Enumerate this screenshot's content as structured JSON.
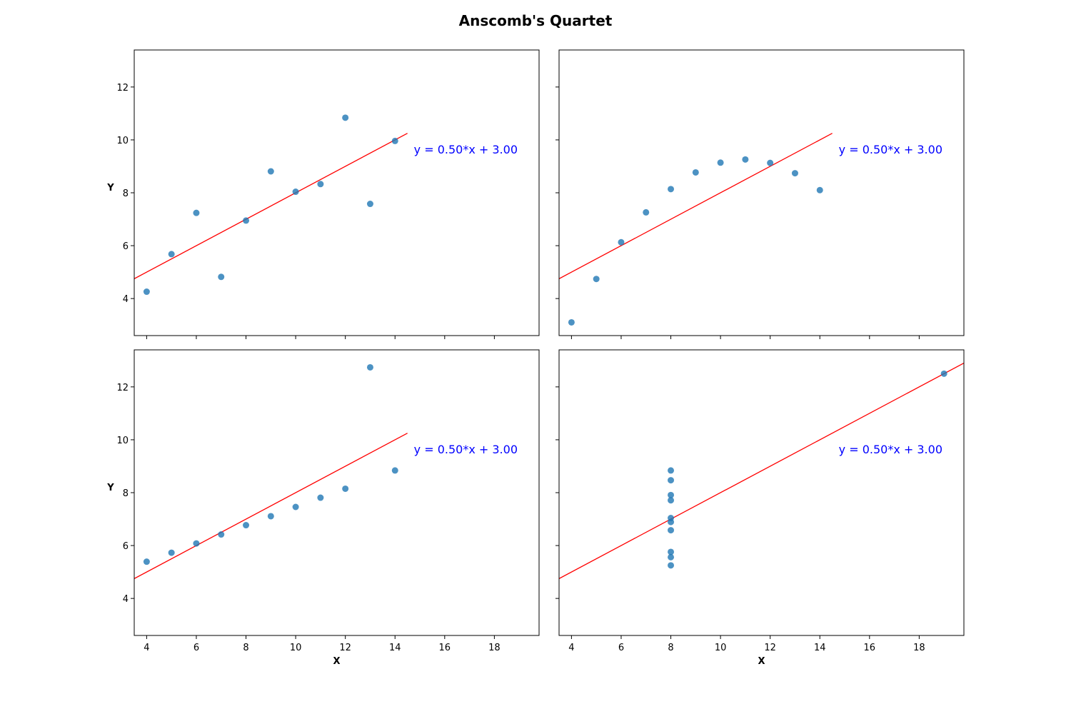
{
  "figure": {
    "title": "Anscomb's Quartet"
  },
  "chart_data": [
    {
      "type": "scatter",
      "panel": "top-left",
      "xlim": [
        3.5,
        19.8
      ],
      "ylim": [
        2.6,
        13.4
      ],
      "xticks": [
        4,
        6,
        8,
        10,
        12,
        14,
        16,
        18
      ],
      "yticks": [
        4,
        6,
        8,
        10,
        12
      ],
      "show_x_tick_labels": false,
      "show_y_tick_labels": true,
      "xlabel": "",
      "ylabel": "Y",
      "point_color": "#1f77b4",
      "line_color": "#ff0000",
      "points": [
        [
          10,
          8.04
        ],
        [
          8,
          6.95
        ],
        [
          13,
          7.58
        ],
        [
          9,
          8.81
        ],
        [
          11,
          8.33
        ],
        [
          14,
          9.96
        ],
        [
          6,
          7.24
        ],
        [
          4,
          4.26
        ],
        [
          12,
          10.84
        ],
        [
          7,
          4.82
        ],
        [
          5,
          5.68
        ]
      ],
      "fit": {
        "slope": 0.5,
        "intercept": 3.0,
        "x_range": [
          3.5,
          14.5
        ]
      },
      "annotation": "y = 0.50*x + 3.00"
    },
    {
      "type": "scatter",
      "panel": "top-right",
      "xlim": [
        3.5,
        19.8
      ],
      "ylim": [
        2.6,
        13.4
      ],
      "xticks": [
        4,
        6,
        8,
        10,
        12,
        14,
        16,
        18
      ],
      "yticks": [
        4,
        6,
        8,
        10,
        12
      ],
      "show_x_tick_labels": false,
      "show_y_tick_labels": false,
      "xlabel": "",
      "ylabel": "",
      "point_color": "#1f77b4",
      "line_color": "#ff0000",
      "points": [
        [
          10,
          9.14
        ],
        [
          8,
          8.14
        ],
        [
          13,
          8.74
        ],
        [
          9,
          8.77
        ],
        [
          11,
          9.26
        ],
        [
          14,
          8.1
        ],
        [
          6,
          6.13
        ],
        [
          4,
          3.1
        ],
        [
          12,
          9.13
        ],
        [
          7,
          7.26
        ],
        [
          5,
          4.74
        ]
      ],
      "fit": {
        "slope": 0.5,
        "intercept": 3.0,
        "x_range": [
          3.5,
          14.5
        ]
      },
      "annotation": "y = 0.50*x + 3.00"
    },
    {
      "type": "scatter",
      "panel": "bottom-left",
      "xlim": [
        3.5,
        19.8
      ],
      "ylim": [
        2.6,
        13.4
      ],
      "xticks": [
        4,
        6,
        8,
        10,
        12,
        14,
        16,
        18
      ],
      "yticks": [
        4,
        6,
        8,
        10,
        12
      ],
      "show_x_tick_labels": true,
      "show_y_tick_labels": true,
      "xlabel": "X",
      "ylabel": "Y",
      "point_color": "#1f77b4",
      "line_color": "#ff0000",
      "points": [
        [
          10,
          7.46
        ],
        [
          8,
          6.77
        ],
        [
          13,
          12.74
        ],
        [
          9,
          7.11
        ],
        [
          11,
          7.81
        ],
        [
          14,
          8.84
        ],
        [
          6,
          6.08
        ],
        [
          4,
          5.39
        ],
        [
          12,
          8.15
        ],
        [
          7,
          6.42
        ],
        [
          5,
          5.73
        ]
      ],
      "fit": {
        "slope": 0.5,
        "intercept": 3.0,
        "x_range": [
          3.5,
          14.5
        ]
      },
      "annotation": "y = 0.50*x + 3.00"
    },
    {
      "type": "scatter",
      "panel": "bottom-right",
      "xlim": [
        3.5,
        19.8
      ],
      "ylim": [
        2.6,
        13.4
      ],
      "xticks": [
        4,
        6,
        8,
        10,
        12,
        14,
        16,
        18
      ],
      "yticks": [
        4,
        6,
        8,
        10,
        12
      ],
      "show_x_tick_labels": true,
      "show_y_tick_labels": false,
      "xlabel": "X",
      "ylabel": "",
      "point_color": "#1f77b4",
      "line_color": "#ff0000",
      "points": [
        [
          8,
          6.58
        ],
        [
          8,
          5.76
        ],
        [
          8,
          7.71
        ],
        [
          8,
          8.84
        ],
        [
          8,
          8.47
        ],
        [
          8,
          7.04
        ],
        [
          8,
          5.25
        ],
        [
          19,
          12.5
        ],
        [
          8,
          5.56
        ],
        [
          8,
          7.91
        ],
        [
          8,
          6.89
        ]
      ],
      "fit": {
        "slope": 0.5,
        "intercept": 3.0,
        "x_range": [
          3.5,
          19.8
        ]
      },
      "annotation": "y = 0.50*x + 3.00"
    }
  ]
}
